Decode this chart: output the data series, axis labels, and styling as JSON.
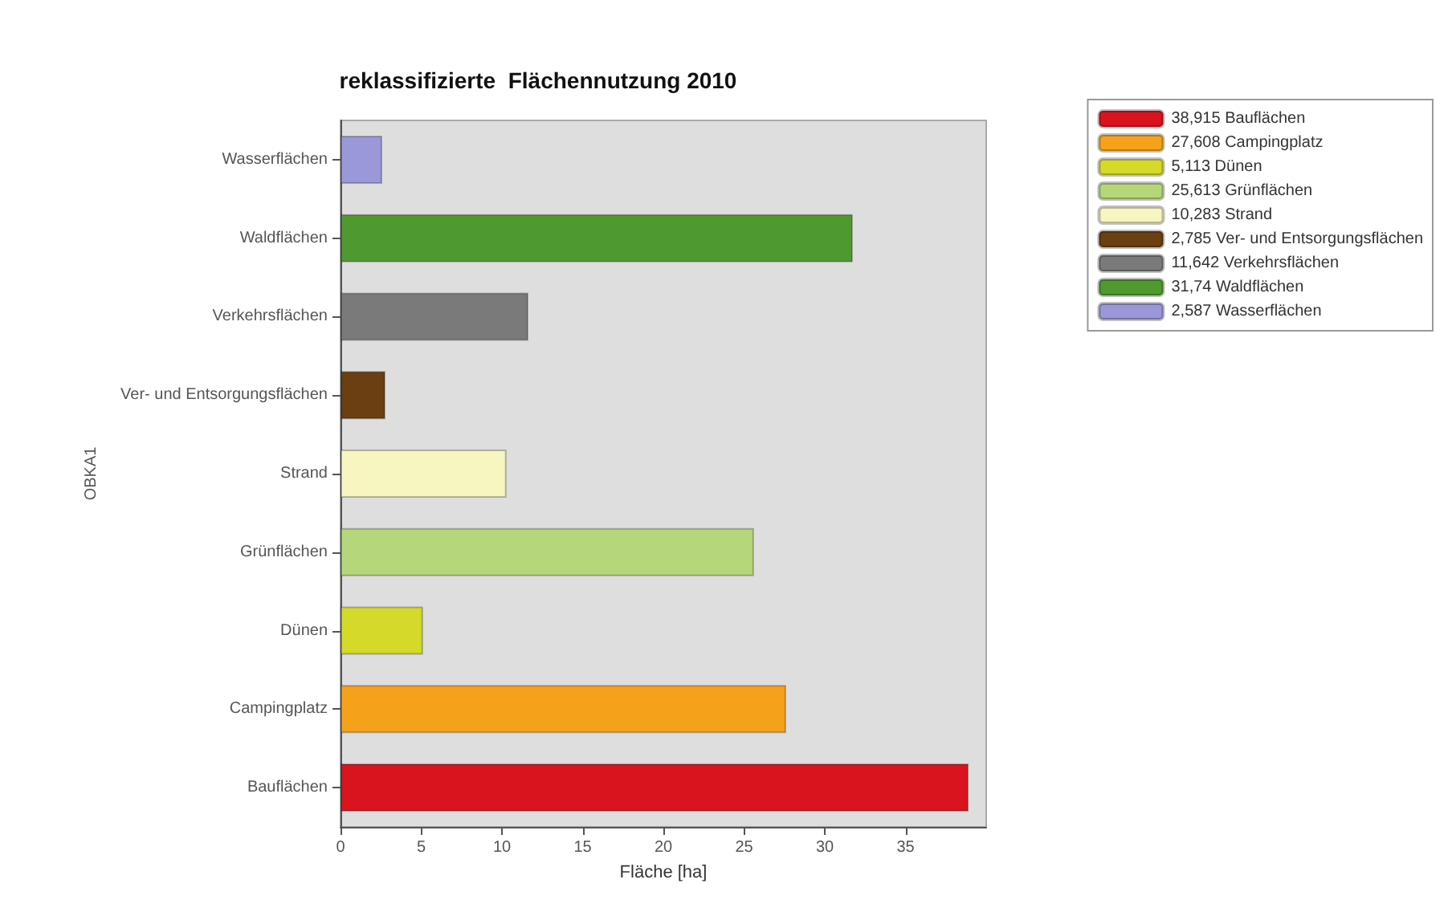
{
  "chart_data": {
    "type": "bar",
    "orientation": "horizontal",
    "title": "reklassifizierte  Flächennutzung 2010",
    "xlabel": "Fläche [ha]",
    "ylabel": "OBKA1",
    "categories": [
      "Wasserflächen",
      "Waldflächen",
      "Verkehrsflächen",
      "Ver- und Entsorgungsflächen",
      "Strand",
      "Grünflächen",
      "Dünen",
      "Campingplatz",
      "Bauflächen"
    ],
    "series": [
      {
        "name": "38,915 Bauflächen",
        "color": "#d9141e",
        "values": [
          null,
          null,
          null,
          null,
          null,
          null,
          null,
          null,
          38.915
        ]
      },
      {
        "name": "27,608 Campingplatz",
        "color": "#f5a21a",
        "values": [
          null,
          null,
          null,
          null,
          null,
          null,
          null,
          27.608,
          null
        ]
      },
      {
        "name": "5,113 Dünen",
        "color": "#d4d92a",
        "values": [
          null,
          null,
          null,
          null,
          null,
          null,
          5.113,
          null,
          null
        ]
      },
      {
        "name": "25,613 Grünflächen",
        "color": "#b5d77a",
        "values": [
          null,
          null,
          null,
          null,
          null,
          25.613,
          null,
          null,
          null
        ]
      },
      {
        "name": "10,283 Strand",
        "color": "#f7f5c0",
        "values": [
          null,
          null,
          null,
          null,
          10.283,
          null,
          null,
          null,
          null
        ]
      },
      {
        "name": "2,785 Ver- und Entsorgungsflächen",
        "color": "#6b3f12",
        "values": [
          null,
          null,
          null,
          2.785,
          null,
          null,
          null,
          null,
          null
        ]
      },
      {
        "name": "11,642 Verkehrsflächen",
        "color": "#7a7a7a",
        "values": [
          null,
          null,
          11.642,
          null,
          null,
          null,
          null,
          null,
          null
        ]
      },
      {
        "name": "31,74 Waldflächen",
        "color": "#4f9a2f",
        "values": [
          null,
          31.74,
          null,
          null,
          null,
          null,
          null,
          null,
          null
        ]
      },
      {
        "name": "2,587 Wasserflächen",
        "color": "#9a98d8",
        "values": [
          2.587,
          null,
          null,
          null,
          null,
          null,
          null,
          null,
          null
        ]
      }
    ],
    "xlim": [
      0,
      40
    ],
    "xticks": [
      0,
      5,
      10,
      15,
      20,
      25,
      30,
      35
    ],
    "legend": "top right"
  }
}
